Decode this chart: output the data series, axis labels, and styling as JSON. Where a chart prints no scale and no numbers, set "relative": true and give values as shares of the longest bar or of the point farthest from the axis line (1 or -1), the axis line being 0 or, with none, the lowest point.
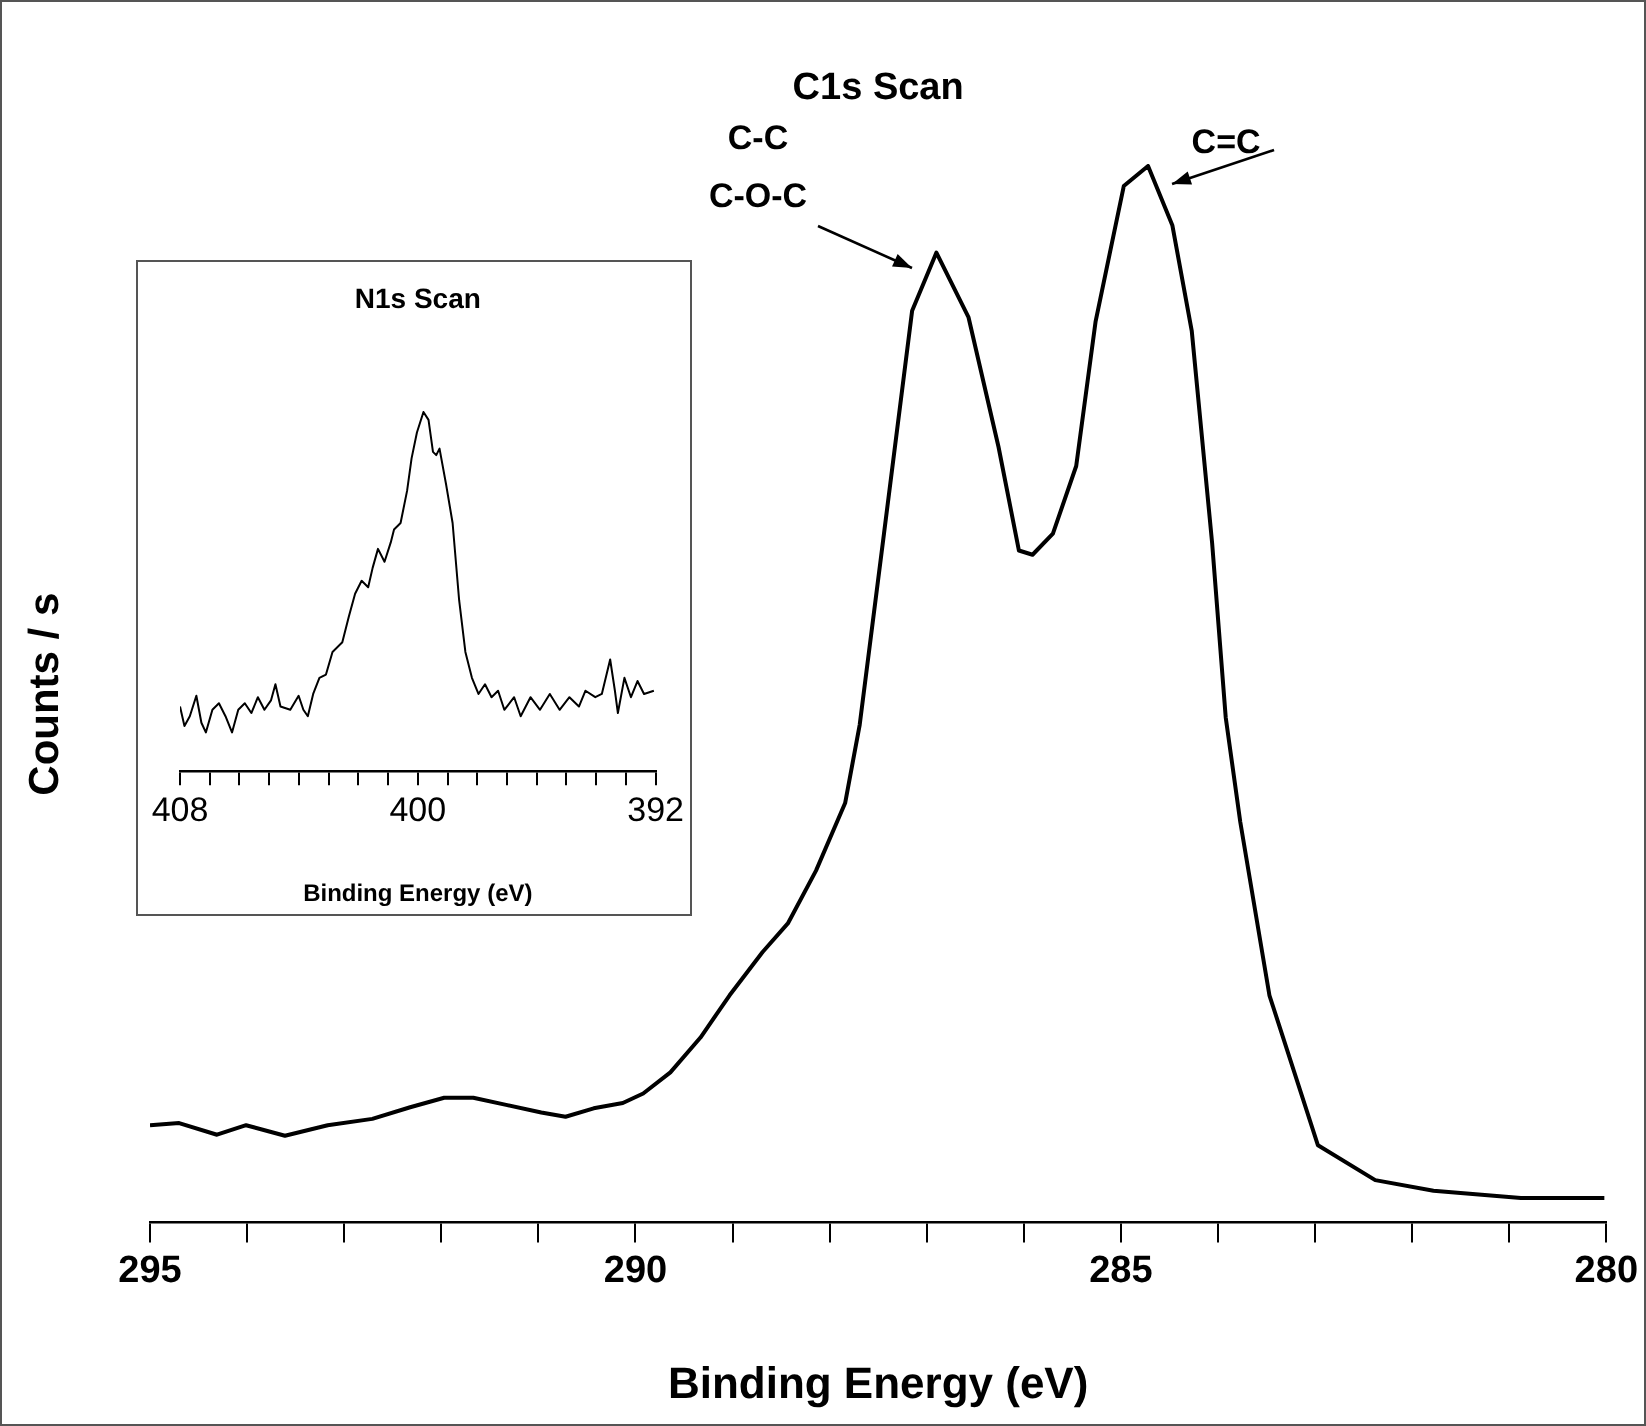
{
  "chart_data": [
    {
      "type": "line",
      "title": "C1s Scan",
      "xlabel": "Binding Energy (eV)",
      "ylabel": "Counts / s",
      "relative": true,
      "tick_labels": "x",
      "marker": "none",
      "color": "#000000",
      "x": [
        295.0,
        294.7,
        294.31,
        294.01,
        293.61,
        293.17,
        292.71,
        292.32,
        291.97,
        291.67,
        291.32,
        290.97,
        290.72,
        290.43,
        290.13,
        289.92,
        289.64,
        289.33,
        289.03,
        288.69,
        288.43,
        288.14,
        287.84,
        287.69,
        287.44,
        287.15,
        286.9,
        286.57,
        286.26,
        286.05,
        285.91,
        285.7,
        285.46,
        285.26,
        284.97,
        284.72,
        284.47,
        284.27,
        284.06,
        283.92,
        283.77,
        283.47,
        282.97,
        282.38,
        281.78,
        280.88,
        280.02
      ],
      "values": [
        0.092,
        0.094,
        0.083,
        0.092,
        0.082,
        0.092,
        0.098,
        0.109,
        0.118,
        0.118,
        0.111,
        0.104,
        0.1,
        0.108,
        0.113,
        0.122,
        0.142,
        0.175,
        0.215,
        0.256,
        0.283,
        0.333,
        0.397,
        0.471,
        0.652,
        0.863,
        0.918,
        0.857,
        0.734,
        0.636,
        0.632,
        0.652,
        0.716,
        0.853,
        0.981,
        1,
        0.944,
        0.844,
        0.643,
        0.478,
        0.379,
        0.215,
        0.073,
        0.04,
        0.03,
        0.023,
        0.023
      ],
      "xlim": [
        295,
        280
      ],
      "xticks": [
        295,
        {
          "value": 294,
          "label": null
        },
        {
          "value": 293,
          "label": null
        },
        {
          "value": 292,
          "label": null
        },
        {
          "value": 291,
          "label": null
        },
        290,
        {
          "value": 289,
          "label": null
        },
        {
          "value": 288,
          "label": null
        },
        {
          "value": 287,
          "label": null
        },
        {
          "value": 286,
          "label": null
        },
        285,
        {
          "value": 284,
          "label": null
        },
        {
          "value": 283,
          "label": null
        },
        {
          "value": 282,
          "label": null
        },
        {
          "value": 281,
          "label": null
        },
        280
      ],
      "annotations": [
        "C-C\nC-O-C",
        {
          "text": "C=C",
          "x": 284.72,
          "y": 1
        }
      ]
    },
    {
      "type": "line",
      "title": "N1s Scan",
      "xlabel": "Binding Energy (eV)",
      "relative": true,
      "tick_labels": "x",
      "marker": "none",
      "color": "#000000",
      "x": [
        408.0,
        407.85,
        407.67,
        407.45,
        407.28,
        407.13,
        406.91,
        406.69,
        406.47,
        406.25,
        406.04,
        405.82,
        405.6,
        405.38,
        405.16,
        404.94,
        404.79,
        404.62,
        404.29,
        404.01,
        403.85,
        403.7,
        403.52,
        403.31,
        403.09,
        402.87,
        402.54,
        402.32,
        402.11,
        401.89,
        401.67,
        401.52,
        401.34,
        401.12,
        400.91,
        400.8,
        400.58,
        400.36,
        400.21,
        400.03,
        399.81,
        399.64,
        399.49,
        399.38,
        399.27,
        399.05,
        398.83,
        398.61,
        398.4,
        398.18,
        397.96,
        397.74,
        397.52,
        397.3,
        397.09,
        396.76,
        396.54,
        396.21,
        395.89,
        395.56,
        395.23,
        394.9,
        394.58,
        394.36,
        394.03,
        393.81,
        393.53,
        393.37,
        393.27,
        393.05,
        392.83,
        392.61,
        392.39,
        392.06
      ],
      "values": [
        0.18,
        0.126,
        0.153,
        0.21,
        0.135,
        0.108,
        0.171,
        0.189,
        0.153,
        0.108,
        0.171,
        0.189,
        0.162,
        0.206,
        0.171,
        0.197,
        0.242,
        0.18,
        0.171,
        0.21,
        0.171,
        0.153,
        0.215,
        0.26,
        0.269,
        0.332,
        0.359,
        0.431,
        0.494,
        0.53,
        0.512,
        0.566,
        0.619,
        0.583,
        0.637,
        0.673,
        0.691,
        0.781,
        0.871,
        0.943,
        1,
        0.978,
        0.889,
        0.88,
        0.898,
        0.799,
        0.691,
        0.476,
        0.332,
        0.26,
        0.215,
        0.242,
        0.206,
        0.224,
        0.171,
        0.206,
        0.153,
        0.206,
        0.171,
        0.215,
        0.171,
        0.206,
        0.18,
        0.224,
        0.206,
        0.215,
        0.311,
        0.224,
        0.162,
        0.26,
        0.206,
        0.251,
        0.215,
        0.224
      ],
      "xlim": [
        408,
        392
      ],
      "xticks": [
        408,
        {
          "value": 407,
          "label": null
        },
        {
          "value": 406,
          "label": null
        },
        {
          "value": 405,
          "label": null
        },
        {
          "value": 404,
          "label": null
        },
        {
          "value": 403,
          "label": null
        },
        {
          "value": 402,
          "label": null
        },
        {
          "value": 401,
          "label": null
        },
        400,
        {
          "value": 399,
          "label": null
        },
        {
          "value": 398,
          "label": null
        },
        {
          "value": 397,
          "label": null
        },
        {
          "value": 396,
          "label": null
        },
        {
          "value": 395,
          "label": null
        },
        {
          "value": 394,
          "label": null
        },
        {
          "value": 393,
          "label": null
        },
        392
      ]
    }
  ]
}
